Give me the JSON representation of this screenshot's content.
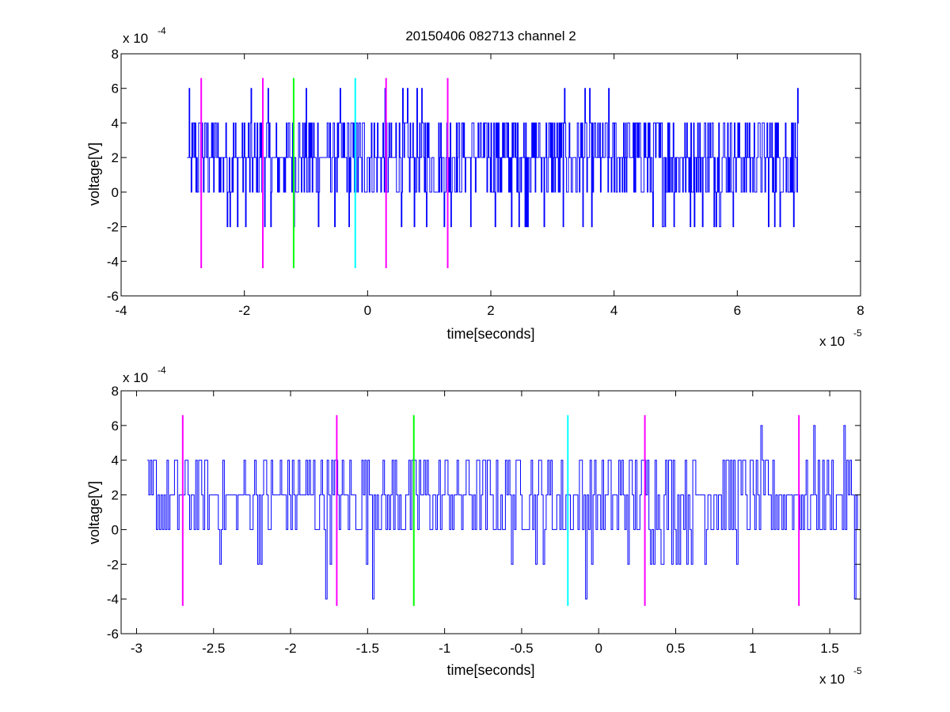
{
  "figure": {
    "title": "20150406 082713 channel 2",
    "colors": {
      "signal": "#0000ff",
      "magenta": "#ff00ff",
      "green": "#00ff00",
      "cyan": "#00ffff",
      "axis": "#000000"
    }
  },
  "chart_data": [
    {
      "type": "line",
      "title": "20150406 082713 channel 2",
      "xlabel": "time[seconds]",
      "ylabel": "voltage[V]",
      "x_exponent_label": "x 10",
      "x_exponent": "-5",
      "y_exponent_label": "x 10",
      "y_exponent": "-4",
      "xlim": [
        -4,
        8
      ],
      "ylim": [
        -6,
        8
      ],
      "x_ticks": [
        "-4",
        "-2",
        "0",
        "2",
        "4",
        "6",
        "8"
      ],
      "y_ticks": [
        "-6",
        "-4",
        "-2",
        "0",
        "2",
        "4",
        "6",
        "8"
      ],
      "grid": false,
      "signal": {
        "x_range": [
          -2.93,
          7.0
        ],
        "levels": [
          -2,
          0,
          2,
          4,
          6
        ],
        "note_units": "x values in units of 1e-5 s, y values in units of 1e-4 V"
      },
      "markers": [
        {
          "x": -2.7,
          "color": "magenta",
          "y_from": -4.4,
          "y_to": 6.6
        },
        {
          "x": -1.7,
          "color": "magenta",
          "y_from": -4.4,
          "y_to": 6.6
        },
        {
          "x": -1.2,
          "color": "green",
          "y_from": -4.4,
          "y_to": 6.6
        },
        {
          "x": -0.2,
          "color": "cyan",
          "y_from": -4.4,
          "y_to": 6.6
        },
        {
          "x": 0.3,
          "color": "magenta",
          "y_from": -4.4,
          "y_to": 6.6
        },
        {
          "x": 1.3,
          "color": "magenta",
          "y_from": -4.4,
          "y_to": 6.6
        }
      ]
    },
    {
      "type": "line",
      "title": "",
      "xlabel": "time[seconds]",
      "ylabel": "voltage[V]",
      "x_exponent_label": "x 10",
      "x_exponent": "-5",
      "y_exponent_label": "x 10",
      "y_exponent": "-4",
      "xlim": [
        -3.1,
        1.7
      ],
      "ylim": [
        -6,
        8
      ],
      "x_ticks": [
        "-3",
        "-2.5",
        "-2",
        "-1.5",
        "-1",
        "-0.5",
        "0",
        "0.5",
        "1",
        "1.5"
      ],
      "y_ticks": [
        "-6",
        "-4",
        "-2",
        "0",
        "2",
        "4",
        "6",
        "8"
      ],
      "grid": false,
      "signal": {
        "x_range": [
          -2.93,
          1.68
        ],
        "levels": [
          -4,
          -2,
          0,
          2,
          4,
          6
        ]
      },
      "markers": [
        {
          "x": -2.7,
          "color": "magenta",
          "y_from": -4.4,
          "y_to": 6.6
        },
        {
          "x": -1.7,
          "color": "magenta",
          "y_from": -4.4,
          "y_to": 6.6
        },
        {
          "x": -1.2,
          "color": "green",
          "y_from": -4.4,
          "y_to": 6.6
        },
        {
          "x": -0.2,
          "color": "cyan",
          "y_from": -4.4,
          "y_to": 6.6
        },
        {
          "x": 0.3,
          "color": "magenta",
          "y_from": -4.4,
          "y_to": 6.6
        },
        {
          "x": 1.3,
          "color": "magenta",
          "y_from": -4.4,
          "y_to": 6.6
        }
      ]
    }
  ]
}
